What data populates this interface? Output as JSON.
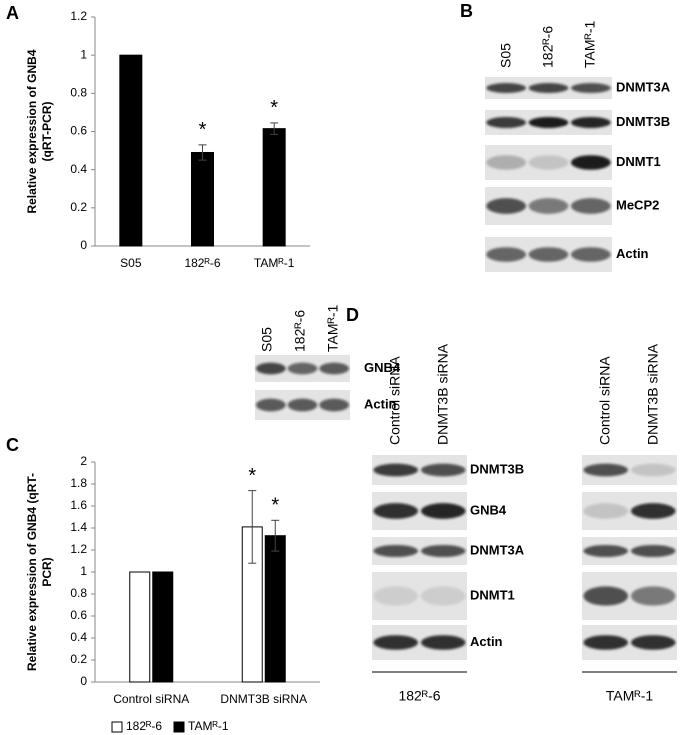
{
  "chart_data": [
    {
      "type": "bar",
      "panel": "A",
      "ylabel": "Relative expression of GNB4 (qRT-PCR)",
      "categories": [
        "S05",
        "182ᴿ-6",
        "TAMᴿ-1"
      ],
      "values": [
        1,
        0.49,
        0.615
      ],
      "errors": [
        0,
        0.04,
        0.03
      ],
      "value_annotations": [
        null,
        "*",
        "*"
      ],
      "color": "#000000",
      "ylim": [
        0,
        1.2
      ],
      "yticks": [
        0,
        0.2,
        0.4,
        0.6,
        0.8,
        1,
        1.2
      ]
    },
    {
      "type": "bar",
      "panel": "C",
      "ylabel": "Relative expression of GNB4 (qRT-PCR)",
      "categories": [
        "Control siRNA",
        "DNMT3B siRNA"
      ],
      "series": [
        {
          "name": "182ᴿ-6",
          "color": "#ffffff",
          "values": [
            1,
            1.41
          ],
          "errors": [
            0,
            0.33
          ],
          "value_annotations": [
            null,
            "*"
          ]
        },
        {
          "name": "TAMᴿ-1",
          "color": "#000000",
          "values": [
            1,
            1.33
          ],
          "errors": [
            0,
            0.14
          ],
          "value_annotations": [
            null,
            "*"
          ]
        }
      ],
      "ylim": [
        0,
        2
      ],
      "yticks": [
        0,
        0.2,
        0.4,
        0.6,
        0.8,
        1,
        1.2,
        1.4,
        1.6,
        1.8,
        2
      ],
      "legend": "bottom"
    }
  ],
  "blots": [
    {
      "panel": "B",
      "lanes": [
        "S05",
        "182ᴿ-6",
        "TAMᴿ-1"
      ],
      "rows": [
        "DNMT3A",
        "DNMT3B",
        "DNMT1",
        "MeCP2",
        "Actin"
      ]
    },
    {
      "lanes": [
        "S05",
        "182ᴿ-6",
        "TAMᴿ-1"
      ],
      "rows": [
        "GNB4",
        "Actin"
      ]
    },
    {
      "panel": "D",
      "groups": [
        {
          "name": "182ᴿ-6",
          "lanes": [
            "Control siRNA",
            "DNMT3B siRNA"
          ]
        },
        {
          "name": "TAMᴿ-1",
          "lanes": [
            "Control siRNA",
            "DNMT3B siRNA"
          ]
        }
      ],
      "rows": [
        "DNMT3B",
        "GNB4",
        "DNMT3A",
        "DNMT1",
        "Actin"
      ]
    }
  ]
}
